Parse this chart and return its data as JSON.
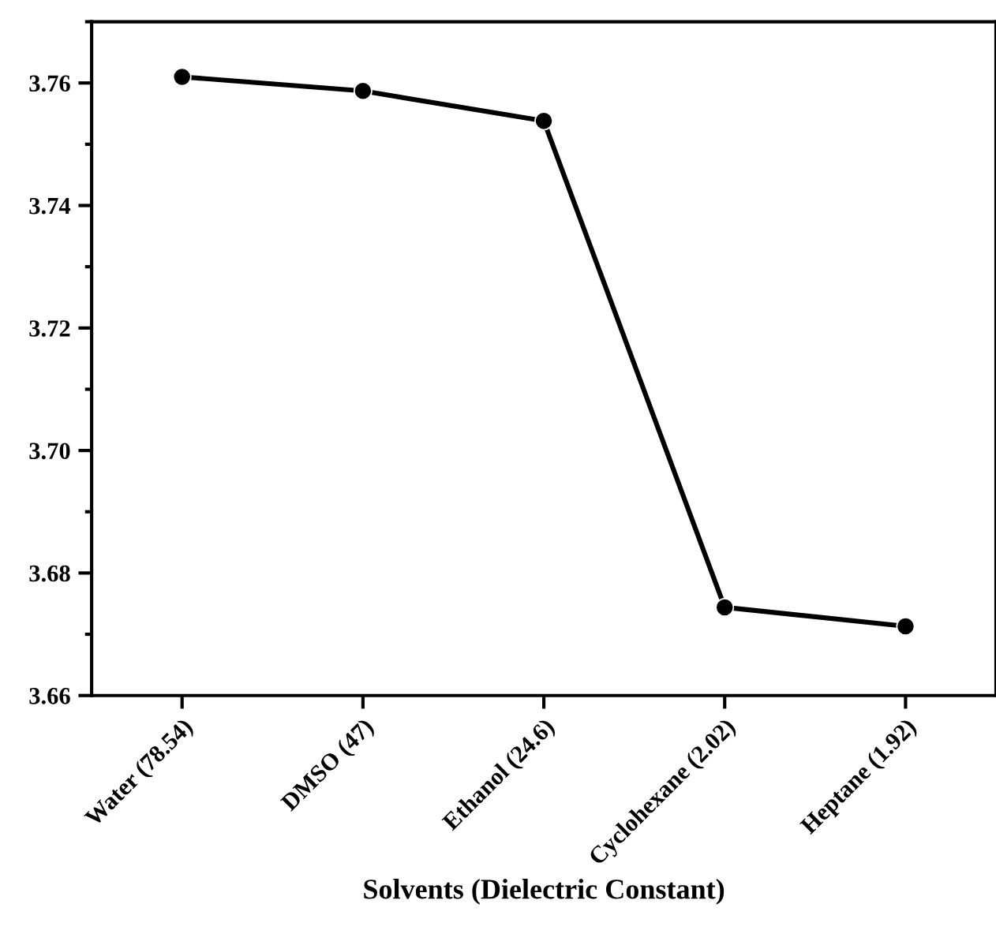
{
  "chart_data": {
    "type": "line",
    "xlabel": "Solvents (Dielectric Constant)",
    "categories": [
      "Water (78.54)",
      "DMSO (47)",
      "Ethanol (24.6)",
      "Cyclohexane (2.02)",
      "Heptane (1.92)"
    ],
    "series": [
      {
        "color": "#000000",
        "values": [
          3.761,
          3.7587,
          3.7538,
          3.6744,
          3.6713
        ]
      }
    ],
    "ylim": [
      3.66,
      3.77
    ],
    "yticks": [
      3.66,
      3.68,
      {
        "value": 3.7,
        "label": "3.70"
      },
      3.72,
      3.74,
      3.76
    ],
    "marker": "circle",
    "line_style": "solid",
    "grid": false,
    "legend": false
  }
}
